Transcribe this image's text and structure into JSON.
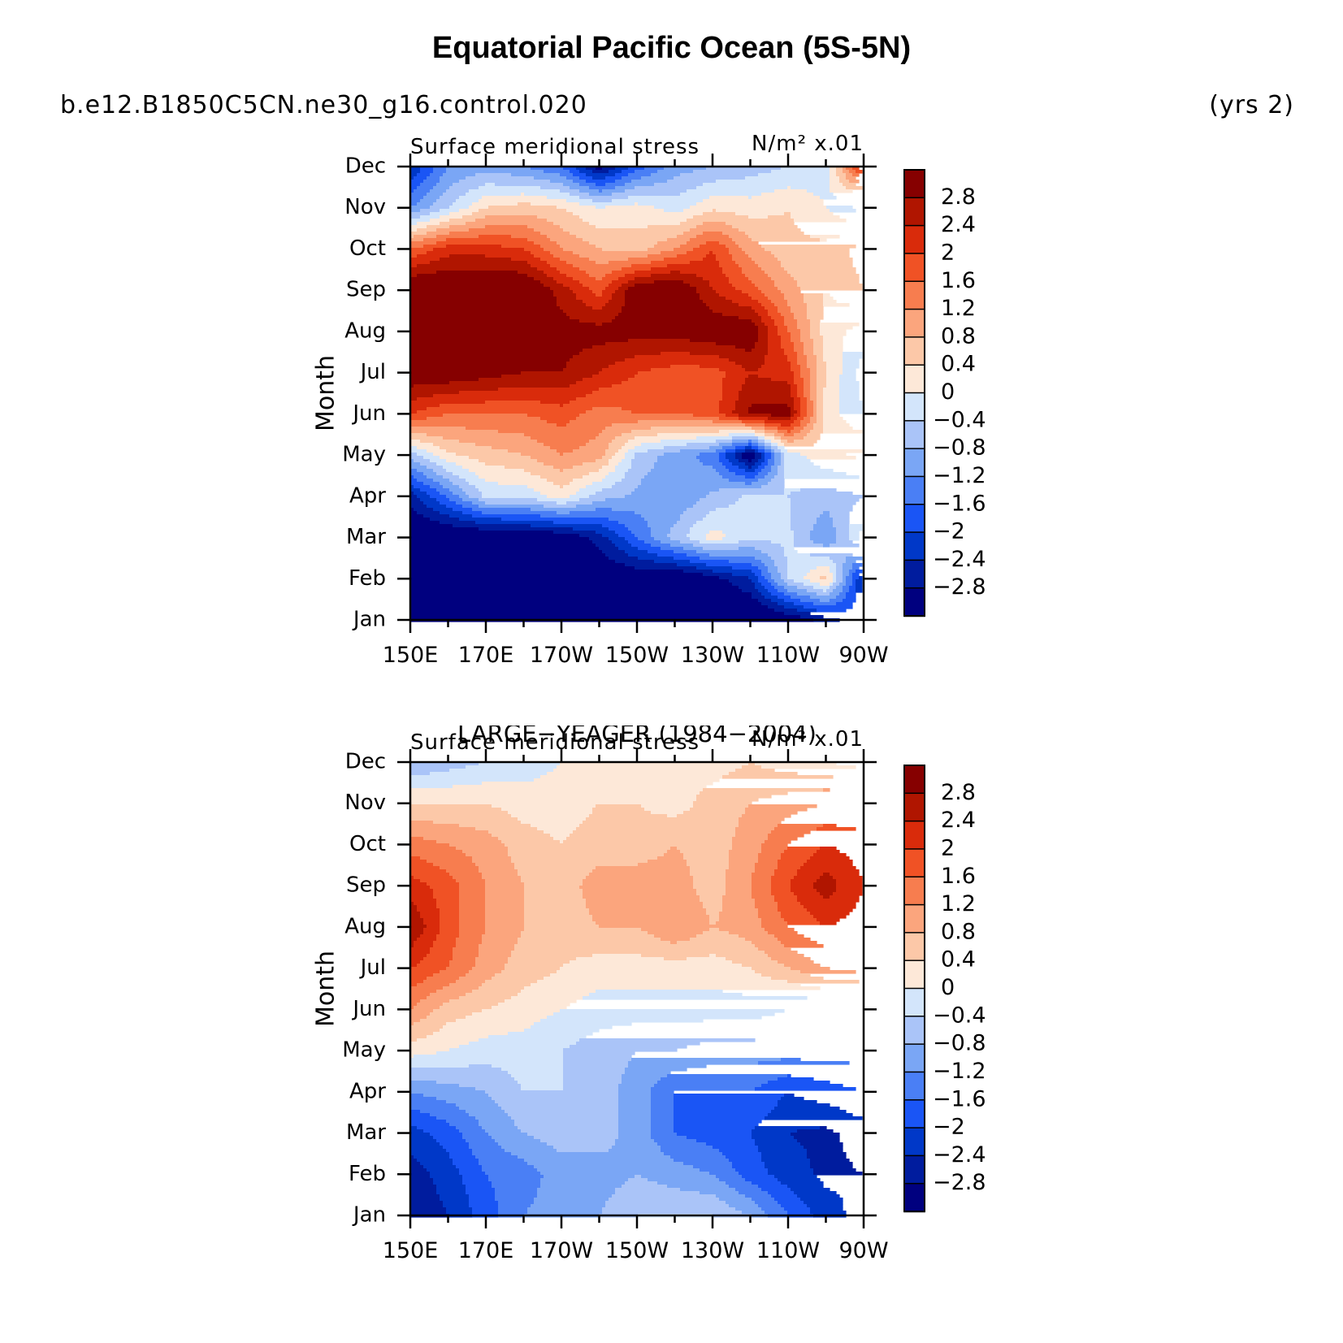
{
  "figure": {
    "title": "Equatorial Pacific Ocean (5S-5N)",
    "case": "b.e12.B1850C5CN.ne30_g16.control.020",
    "years": "(yrs 2)"
  },
  "colors": {
    "levels": [
      "#00007f",
      "#001c9e",
      "#0038c8",
      "#1a55f5",
      "#4a7ff5",
      "#7aa6f5",
      "#aac4f8",
      "#d3e5fb",
      "#fde8d8",
      "#fcc8a8",
      "#fba57d",
      "#f77d4f",
      "#f05225",
      "#d92b0b",
      "#b01500",
      "#860000"
    ]
  },
  "chart_data": [
    {
      "type": "heatmap",
      "panel_title": "",
      "title": "Surface meridional stress",
      "units": "N/m² x.01",
      "ylabel": "Month",
      "xlabel": "",
      "x_ticks": [
        "150E",
        "170E",
        "170W",
        "150W",
        "130W",
        "110W",
        "90W"
      ],
      "y_ticks": [
        "Jan",
        "Feb",
        "Mar",
        "Apr",
        "May",
        "Jun",
        "Jul",
        "Aug",
        "Sep",
        "Oct",
        "Nov",
        "Dec"
      ],
      "xlim": [
        150,
        270
      ],
      "ylim": [
        1,
        12
      ],
      "colorbar_labels": [
        "2.8",
        "2.4",
        "2",
        "1.6",
        "1.2",
        "0.8",
        "0.4",
        "0",
        "−0.4",
        "−0.8",
        "−1.2",
        "−1.6",
        "−2",
        "−2.4",
        "−2.8"
      ],
      "levels": [
        -2.8,
        -2.4,
        -2.0,
        -1.6,
        -1.2,
        -0.8,
        -0.4,
        0,
        0.4,
        0.8,
        1.2,
        1.6,
        2.0,
        2.4,
        2.8
      ],
      "x": [
        150,
        160,
        170,
        180,
        190,
        200,
        210,
        220,
        230,
        240,
        250,
        260,
        270
      ],
      "z": [
        [
          -3.5,
          -3.5,
          -3.5,
          -3.5,
          -3.0,
          -3.0,
          -3.5,
          -3.5,
          -3.5,
          -3.5,
          -3.2,
          -2.6,
          -2.0
        ],
        [
          -3.5,
          -3.5,
          -3.5,
          -3.5,
          -3.5,
          -3.3,
          -3.2,
          -3.4,
          -3.0,
          -2.4,
          -0.4,
          0.6,
          -2.6
        ],
        [
          -3.4,
          -3.4,
          -3.4,
          -3.3,
          -3.2,
          -2.6,
          -1.6,
          -0.6,
          0.2,
          -0.3,
          -0.3,
          -1.2,
          0.2
        ],
        [
          -2.6,
          -1.5,
          -0.3,
          -0.3,
          0.2,
          -0.6,
          -0.9,
          -1.2,
          -0.7,
          -0.3,
          -0.4,
          -0.6,
          -0.4
        ],
        [
          -0.6,
          0.3,
          0.6,
          0.8,
          1.2,
          1.0,
          -0.5,
          -1.0,
          -1.4,
          -3.3,
          -0.2,
          0.3,
          0.5
        ],
        [
          2.0,
          1.6,
          1.6,
          1.6,
          1.8,
          1.4,
          1.6,
          1.6,
          1.8,
          2.9,
          3.0,
          0.2,
          -0.4
        ],
        [
          3.2,
          3.2,
          3.0,
          2.8,
          2.8,
          2.4,
          2.0,
          1.8,
          1.8,
          2.4,
          2.2,
          0.4,
          -0.6
        ],
        [
          3.4,
          3.4,
          3.4,
          3.4,
          3.0,
          3.0,
          3.0,
          3.0,
          3.2,
          3.2,
          1.6,
          0.2,
          -0.2
        ],
        [
          3.4,
          3.4,
          3.4,
          3.4,
          2.6,
          1.8,
          3.2,
          3.4,
          2.4,
          1.8,
          1.0,
          0.4,
          0.8
        ],
        [
          1.6,
          2.2,
          2.2,
          2.0,
          1.2,
          0.8,
          0.6,
          1.2,
          2.0,
          1.0,
          0.5,
          0.5,
          1.0
        ],
        [
          -1.2,
          -0.4,
          0.4,
          0.6,
          0.4,
          0.0,
          0.2,
          -0.2,
          0.3,
          0.2,
          0.4,
          0.0,
          -0.6
        ],
        [
          -2.4,
          -1.2,
          -1.0,
          -1.2,
          -1.6,
          -3.0,
          -1.8,
          -1.0,
          -0.8,
          -0.6,
          -0.4,
          -0.2,
          2.4
        ]
      ]
    },
    {
      "type": "heatmap",
      "panel_title": "LARGE−YEAGER (1984−2004)",
      "title": "Surface meridional stress",
      "units": "N/m² x.01",
      "ylabel": "Month",
      "xlabel": "",
      "x_ticks": [
        "150E",
        "170E",
        "170W",
        "150W",
        "130W",
        "110W",
        "90W"
      ],
      "y_ticks": [
        "Jan",
        "Feb",
        "Mar",
        "Apr",
        "May",
        "Jun",
        "Jul",
        "Aug",
        "Sep",
        "Oct",
        "Nov",
        "Dec"
      ],
      "xlim": [
        150,
        270
      ],
      "ylim": [
        1,
        12
      ],
      "colorbar_labels": [
        "2.8",
        "2.4",
        "2",
        "1.6",
        "1.2",
        "0.8",
        "0.4",
        "0",
        "−0.4",
        "−0.8",
        "−1.2",
        "−1.6",
        "−2",
        "−2.4",
        "−2.8"
      ],
      "levels": [
        -2.8,
        -2.4,
        -2.0,
        -1.6,
        -1.2,
        -0.8,
        -0.4,
        0,
        0.4,
        0.8,
        1.2,
        1.6,
        2.0,
        2.4,
        2.8
      ],
      "x": [
        150,
        160,
        170,
        180,
        190,
        200,
        210,
        220,
        230,
        240,
        250,
        260,
        270
      ],
      "z": [
        [
          -2.8,
          -2.4,
          -1.8,
          -1.2,
          -1.0,
          -0.8,
          -0.4,
          -0.4,
          -0.4,
          -0.8,
          -1.6,
          -2.2,
          -2.6
        ],
        [
          -2.6,
          -2.2,
          -1.6,
          -1.4,
          -1.0,
          -1.0,
          -0.8,
          -1.0,
          -1.2,
          -1.8,
          -2.2,
          -2.5,
          -2.4
        ],
        [
          -2.2,
          -1.8,
          -1.2,
          -0.8,
          -0.6,
          -0.6,
          -1.0,
          -1.6,
          -1.8,
          -2.0,
          -2.4,
          -2.5,
          -2.2
        ],
        [
          -1.2,
          -1.0,
          -0.8,
          -0.4,
          -0.4,
          -0.6,
          -1.0,
          -1.6,
          -1.6,
          -1.6,
          -2.0,
          -1.8,
          -1.6
        ],
        [
          0.2,
          0.0,
          -0.2,
          -0.2,
          -0.4,
          -0.6,
          -0.8,
          -0.8,
          -1.0,
          -1.0,
          -1.0,
          -1.0,
          -1.0
        ],
        [
          1.2,
          0.6,
          0.4,
          0.2,
          0.0,
          -0.2,
          -0.2,
          -0.2,
          -0.2,
          -0.2,
          -0.4,
          -0.4,
          -0.4
        ],
        [
          2.0,
          1.6,
          1.0,
          0.6,
          0.4,
          0.2,
          0.2,
          0.2,
          0.2,
          0.4,
          0.8,
          1.2,
          1.4
        ],
        [
          2.8,
          1.8,
          1.2,
          0.8,
          0.6,
          0.8,
          0.8,
          1.2,
          0.8,
          1.0,
          1.6,
          2.0,
          1.8
        ],
        [
          2.2,
          1.8,
          1.2,
          0.8,
          0.6,
          1.0,
          1.0,
          1.0,
          0.6,
          1.2,
          2.0,
          2.6,
          2.0
        ],
        [
          1.4,
          1.2,
          1.0,
          0.6,
          0.4,
          0.6,
          0.6,
          0.8,
          0.6,
          1.0,
          1.6,
          2.0,
          1.8
        ],
        [
          0.4,
          0.4,
          0.4,
          0.2,
          0.2,
          0.4,
          0.4,
          0.2,
          0.6,
          0.8,
          1.0,
          1.2,
          1.2
        ],
        [
          -0.8,
          -0.6,
          -0.4,
          -0.2,
          0.0,
          0.0,
          0.2,
          0.2,
          0.2,
          0.4,
          0.2,
          0.0,
          -0.2
        ]
      ]
    }
  ]
}
